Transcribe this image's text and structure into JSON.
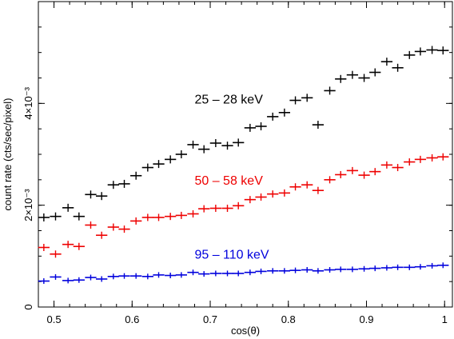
{
  "chart_data": {
    "type": "scatter",
    "xlabel": "cos(θ)",
    "ylabel": "count rate (cts/sec/pixel)",
    "xlim": [
      0.48,
      1.01
    ],
    "ylim": [
      0,
      0.006
    ],
    "x_ticks": [
      {
        "value": 0.5,
        "label": "0.5"
      },
      {
        "value": 0.6,
        "label": "0.6"
      },
      {
        "value": 0.7,
        "label": "0.7"
      },
      {
        "value": 0.8,
        "label": "0.8"
      },
      {
        "value": 0.9,
        "label": "0.9"
      },
      {
        "value": 1.0,
        "label": "1"
      }
    ],
    "y_ticks": [
      {
        "value": 0,
        "label": "0"
      },
      {
        "value": 0.002,
        "label": "2×10⁻³"
      },
      {
        "value": 0.004,
        "label": "4×10⁻³"
      }
    ],
    "series": [
      {
        "name": "25 – 28 keV",
        "color": "#000000",
        "x": [
          0.487,
          0.502,
          0.518,
          0.532,
          0.547,
          0.561,
          0.576,
          0.59,
          0.605,
          0.62,
          0.634,
          0.649,
          0.663,
          0.678,
          0.692,
          0.707,
          0.722,
          0.736,
          0.751,
          0.765,
          0.78,
          0.795,
          0.809,
          0.824,
          0.838,
          0.853,
          0.867,
          0.882,
          0.897,
          0.911,
          0.926,
          0.94,
          0.955,
          0.969,
          0.984,
          0.998
        ],
        "y": [
          0.00176,
          0.00178,
          0.00195,
          0.00178,
          0.00221,
          0.00218,
          0.0024,
          0.00242,
          0.00258,
          0.00274,
          0.00281,
          0.0029,
          0.003,
          0.00319,
          0.0031,
          0.00322,
          0.00317,
          0.00323,
          0.00352,
          0.00355,
          0.00374,
          0.00382,
          0.00406,
          0.00411,
          0.00358,
          0.00425,
          0.00448,
          0.00456,
          0.0045,
          0.00461,
          0.00482,
          0.0047,
          0.00495,
          0.00502,
          0.00505,
          0.00504
        ],
        "label_anchor": {
          "x": 0.68,
          "y": 0.004
        }
      },
      {
        "name": "50 – 58 keV",
        "color": "#ee0000",
        "x": [
          0.487,
          0.502,
          0.518,
          0.532,
          0.547,
          0.561,
          0.576,
          0.59,
          0.605,
          0.62,
          0.634,
          0.649,
          0.663,
          0.678,
          0.692,
          0.707,
          0.722,
          0.736,
          0.751,
          0.765,
          0.78,
          0.795,
          0.809,
          0.824,
          0.838,
          0.853,
          0.867,
          0.882,
          0.897,
          0.911,
          0.926,
          0.94,
          0.955,
          0.969,
          0.984,
          0.998
        ],
        "y": [
          0.00117,
          0.00104,
          0.00123,
          0.00119,
          0.00161,
          0.00141,
          0.00157,
          0.00153,
          0.00169,
          0.00176,
          0.00176,
          0.00178,
          0.0018,
          0.00183,
          0.00193,
          0.00194,
          0.00194,
          0.00199,
          0.00211,
          0.00216,
          0.00222,
          0.00224,
          0.00236,
          0.0024,
          0.00229,
          0.0025,
          0.0026,
          0.00268,
          0.00259,
          0.00266,
          0.00279,
          0.00274,
          0.00285,
          0.0029,
          0.00293,
          0.00295
        ],
        "label_anchor": {
          "x": 0.68,
          "y": 0.0024
        }
      },
      {
        "name": "95 – 110 keV",
        "color": "#0000dd",
        "x": [
          0.487,
          0.502,
          0.518,
          0.532,
          0.547,
          0.561,
          0.576,
          0.59,
          0.605,
          0.62,
          0.634,
          0.649,
          0.663,
          0.678,
          0.692,
          0.707,
          0.722,
          0.736,
          0.751,
          0.765,
          0.78,
          0.795,
          0.809,
          0.824,
          0.838,
          0.853,
          0.867,
          0.882,
          0.897,
          0.911,
          0.926,
          0.94,
          0.955,
          0.969,
          0.984,
          0.998
        ],
        "y": [
          0.00051,
          0.00059,
          0.00052,
          0.00053,
          0.00058,
          0.00055,
          0.0006,
          0.00061,
          0.00061,
          0.0006,
          0.00063,
          0.00062,
          0.00063,
          0.00068,
          0.00065,
          0.00066,
          0.00066,
          0.00066,
          0.00068,
          0.0007,
          0.00071,
          0.00071,
          0.00072,
          0.00073,
          0.00071,
          0.00073,
          0.00074,
          0.00074,
          0.00075,
          0.00076,
          0.00077,
          0.00078,
          0.00078,
          0.00079,
          0.00081,
          0.00082
        ],
        "label_anchor": {
          "x": 0.68,
          "y": 0.00095
        }
      }
    ],
    "x_error_halfwidth": 0.0073,
    "grid": false,
    "legend": "inline labels"
  }
}
